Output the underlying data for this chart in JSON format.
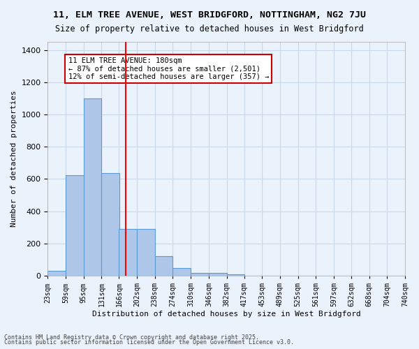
{
  "title": "11, ELM TREE AVENUE, WEST BRIDGFORD, NOTTINGHAM, NG2 7JU",
  "subtitle": "Size of property relative to detached houses in West Bridgford",
  "xlabel": "Distribution of detached houses by size in West Bridgford",
  "ylabel": "Number of detached properties",
  "bins": [
    "23sqm",
    "59sqm",
    "95sqm",
    "131sqm",
    "166sqm",
    "202sqm",
    "238sqm",
    "274sqm",
    "310sqm",
    "346sqm",
    "382sqm",
    "417sqm",
    "453sqm",
    "489sqm",
    "525sqm",
    "561sqm",
    "597sqm",
    "632sqm",
    "668sqm",
    "704sqm",
    "740sqm"
  ],
  "bin_edges": [
    23,
    59,
    95,
    131,
    166,
    202,
    238,
    274,
    310,
    346,
    382,
    417,
    453,
    489,
    525,
    561,
    597,
    632,
    668,
    704,
    740
  ],
  "bar_heights": [
    30,
    625,
    1100,
    635,
    290,
    290,
    120,
    50,
    20,
    20,
    10,
    0,
    0,
    0,
    0,
    0,
    0,
    0,
    0,
    0
  ],
  "bar_color": "#aec6e8",
  "bar_edge_color": "#5b9bd5",
  "grid_color": "#c8d8e8",
  "background_color": "#eaf2fb",
  "red_line_x": 180,
  "annotation_text": "11 ELM TREE AVENUE: 180sqm\n← 87% of detached houses are smaller (2,501)\n12% of semi-detached houses are larger (357) →",
  "annotation_box_color": "#ffffff",
  "annotation_border_color": "#cc0000",
  "ylim": [
    0,
    1450
  ],
  "footnote1": "Contains HM Land Registry data © Crown copyright and database right 2025.",
  "footnote2": "Contains public sector information licensed under the Open Government Licence v3.0."
}
